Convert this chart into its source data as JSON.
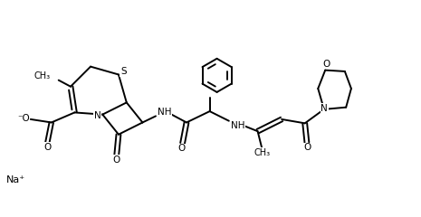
{
  "bg_color": "#ffffff",
  "line_color": "#000000",
  "bond_lw": 1.4,
  "font_size": 7.5,
  "fig_w": 4.65,
  "fig_h": 2.4,
  "dpi": 100,
  "xlim": [
    0,
    10.5
  ],
  "ylim": [
    0,
    5.0
  ]
}
